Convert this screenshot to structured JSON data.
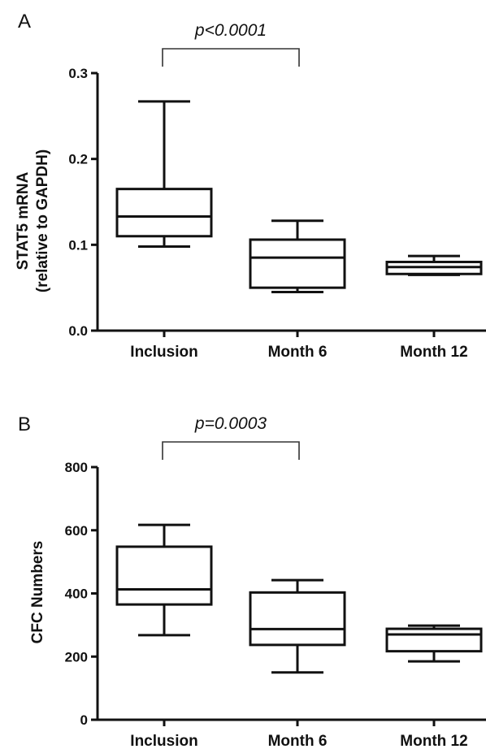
{
  "chart_data": [
    {
      "panel": "A",
      "type": "box",
      "categories": [
        "Inclusion",
        "Month 6",
        "Month 12"
      ],
      "ylabel": [
        "STAT5 mRNA",
        "(relative to GAPDH)"
      ],
      "ylim": [
        0,
        0.3
      ],
      "yticks": [
        "0.0",
        "0.1",
        "0.2",
        "0.3"
      ],
      "boxes": [
        {
          "category": "Inclusion",
          "min": 0.098,
          "q1": 0.11,
          "median": 0.133,
          "q3": 0.165,
          "max": 0.267
        },
        {
          "category": "Month 6",
          "min": 0.045,
          "q1": 0.05,
          "median": 0.085,
          "q3": 0.106,
          "max": 0.128
        },
        {
          "category": "Month 12",
          "min": 0.065,
          "q1": 0.066,
          "median": 0.074,
          "q3": 0.08,
          "max": 0.087
        }
      ],
      "annotation": {
        "text": "p<0.0001",
        "from": "Inclusion",
        "to": "Month 6"
      }
    },
    {
      "panel": "B",
      "type": "box",
      "categories": [
        "Inclusion",
        "Month 6",
        "Month 12"
      ],
      "ylabel": [
        "CFC Numbers"
      ],
      "ylim": [
        0,
        800
      ],
      "yticks": [
        "0",
        "200",
        "400",
        "600",
        "800"
      ],
      "boxes": [
        {
          "category": "Inclusion",
          "min": 268,
          "q1": 365,
          "median": 413,
          "q3": 548,
          "max": 617
        },
        {
          "category": "Month 6",
          "min": 150,
          "q1": 237,
          "median": 287,
          "q3": 403,
          "max": 442
        },
        {
          "category": "Month 12",
          "min": 185,
          "q1": 217,
          "median": 270,
          "q3": 288,
          "max": 298
        }
      ],
      "annotation": {
        "text": "p=0.0003",
        "from": "Inclusion",
        "to": "Month 6"
      }
    }
  ]
}
